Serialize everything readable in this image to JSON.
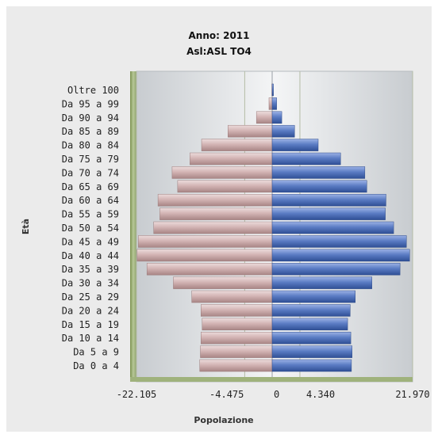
{
  "chart_data": {
    "type": "bar",
    "orientation": "horizontal",
    "title": "Anno: 2011",
    "subtitle": "Asl:ASL TO4",
    "xlabel": "Popolazione",
    "ylabel": "Età",
    "categories": [
      "Oltre 100",
      "Da 95 a 99",
      "Da 90 a 94",
      "Da 85 a 89",
      "Da 80 a 84",
      "Da 75 a 79",
      "Da 70 a 74",
      "Da 65 a 69",
      "Da 60 a 64",
      "Da 55 a 59",
      "Da 50 a 54",
      "Da 45 a 49",
      "Da 40 a 44",
      "Da 35 a 39",
      "Da 30 a 34",
      "Da 25 a 29",
      "Da 20 a 24",
      "Da 15 a 19",
      "Da 10 a 14",
      "Da 5 a 9",
      "Da 0 a 4"
    ],
    "x_tick_labels": [
      "-22.105",
      "-4.475",
      "0",
      "4.340",
      "21.970"
    ],
    "x_ticks": [
      -22105,
      -4475,
      0,
      4340,
      21970
    ],
    "xlim": [
      -22105,
      21970
    ],
    "grid": true,
    "series": [
      {
        "color": "#c9a8a8",
        "values": [
          -60,
          -520,
          -2560,
          -7200,
          -11500,
          -13400,
          -16300,
          -15400,
          -18600,
          -18300,
          -19300,
          -21800,
          -22000,
          -20400,
          -16100,
          -13100,
          -11600,
          -11400,
          -11600,
          -11700,
          -11800
        ]
      },
      {
        "color": "#5b7cc4",
        "values": [
          200,
          700,
          1500,
          3500,
          7200,
          10700,
          14500,
          14800,
          17800,
          17700,
          19000,
          21000,
          21500,
          20000,
          15600,
          13000,
          12200,
          11800,
          12300,
          12500,
          12400
        ]
      }
    ]
  }
}
